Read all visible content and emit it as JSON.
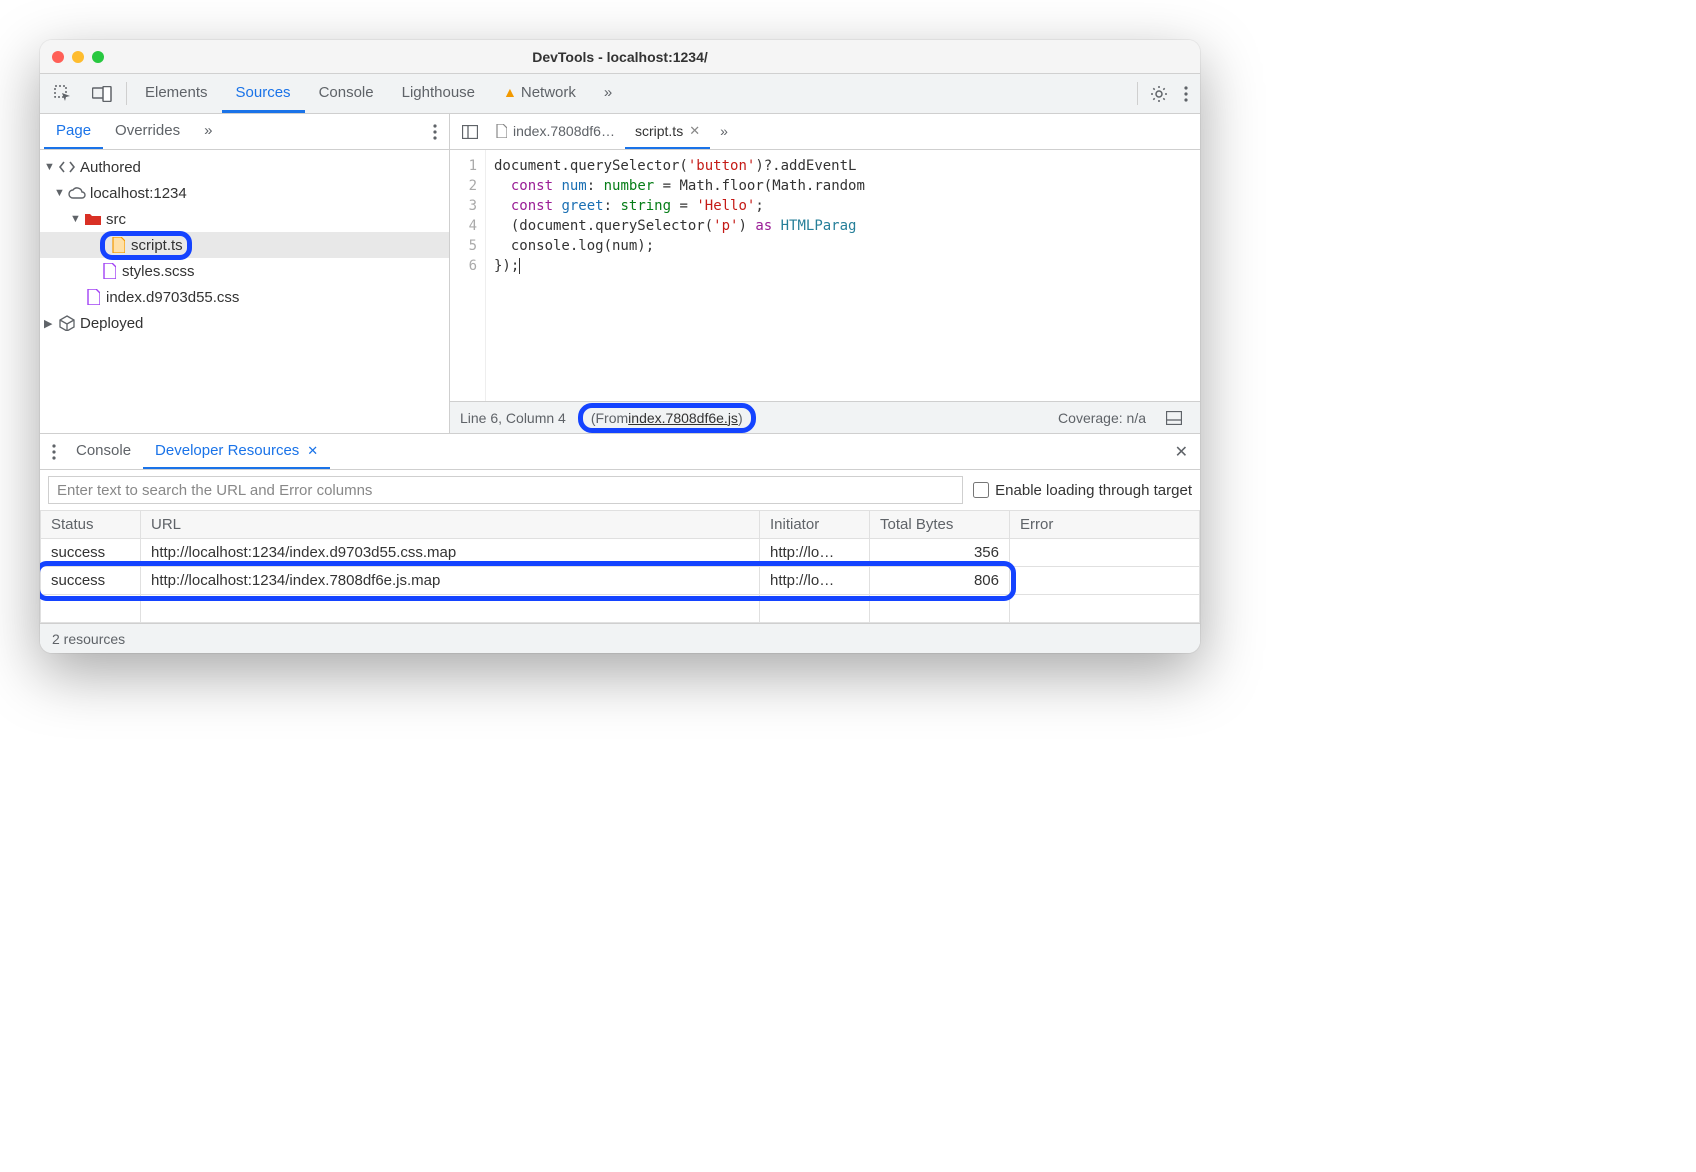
{
  "window": {
    "title": "DevTools - localhost:1234/"
  },
  "mainTabs": {
    "items": [
      "Elements",
      "Sources",
      "Console",
      "Lighthouse",
      "Network"
    ],
    "active": "Sources",
    "networkWarning": true
  },
  "navigator": {
    "tabs": [
      "Page",
      "Overrides"
    ],
    "active": "Page",
    "tree": {
      "authored": "Authored",
      "host": "localhost:1234",
      "folder": "src",
      "files": {
        "script": "script.ts",
        "styles": "styles.scss",
        "css": "index.d9703d55.css"
      },
      "deployed": "Deployed"
    }
  },
  "editor": {
    "tabs": [
      {
        "label": "index.7808df6…",
        "active": false
      },
      {
        "label": "script.ts",
        "active": true
      }
    ],
    "lines": [
      {
        "n": 1,
        "segs": [
          [
            "",
            "document.querySelector("
          ],
          [
            "str",
            "'button'"
          ],
          [
            "",
            ")?.addEventL"
          ]
        ]
      },
      {
        "n": 2,
        "segs": [
          [
            "",
            "  "
          ],
          [
            "kw",
            "const"
          ],
          [
            "",
            " "
          ],
          [
            "var",
            "num"
          ],
          [
            "",
            ": "
          ],
          [
            "type",
            "number"
          ],
          [
            "",
            " = Math.floor(Math.random"
          ]
        ]
      },
      {
        "n": 3,
        "segs": [
          [
            "",
            "  "
          ],
          [
            "kw",
            "const"
          ],
          [
            "",
            " "
          ],
          [
            "var",
            "greet"
          ],
          [
            "",
            ": "
          ],
          [
            "type",
            "string"
          ],
          [
            "",
            " = "
          ],
          [
            "str",
            "'Hello'"
          ],
          [
            "",
            ";"
          ]
        ]
      },
      {
        "n": 4,
        "segs": [
          [
            "",
            "  (document.querySelector("
          ],
          [
            "str",
            "'p'"
          ],
          [
            "",
            ") "
          ],
          [
            "kw",
            "as"
          ],
          [
            "",
            " "
          ],
          [
            "cls",
            "HTMLParag"
          ]
        ]
      },
      {
        "n": 5,
        "segs": [
          [
            "",
            "  console.log(num);"
          ]
        ]
      },
      {
        "n": 6,
        "segs": [
          [
            "",
            "});"
          ]
        ]
      }
    ]
  },
  "statusbar": {
    "position": "Line 6, Column 4",
    "fromPrefix": "(From ",
    "fromLink": "index.7808df6e.js",
    "fromSuffix": ")",
    "coverage": "Coverage: n/a"
  },
  "drawer": {
    "tabs": [
      "Console",
      "Developer Resources"
    ],
    "active": "Developer Resources",
    "searchPlaceholder": "Enter text to search the URL and Error columns",
    "enableLabel": "Enable loading through target",
    "columns": [
      "Status",
      "URL",
      "Initiator",
      "Total Bytes",
      "Error"
    ],
    "rows": [
      {
        "status": "success",
        "url": "http://localhost:1234/index.d9703d55.css.map",
        "initiator": "http://lo…",
        "bytes": "356",
        "error": ""
      },
      {
        "status": "success",
        "url": "http://localhost:1234/index.7808df6e.js.map",
        "initiator": "http://lo…",
        "bytes": "806",
        "error": ""
      }
    ],
    "footer": "2 resources"
  },
  "colors": {
    "accent": "#1a73e8",
    "highlight": "#1443ff",
    "folderIcon": "#d93025",
    "fileOutline": "#a142f4",
    "scriptFill": "#f29900"
  }
}
